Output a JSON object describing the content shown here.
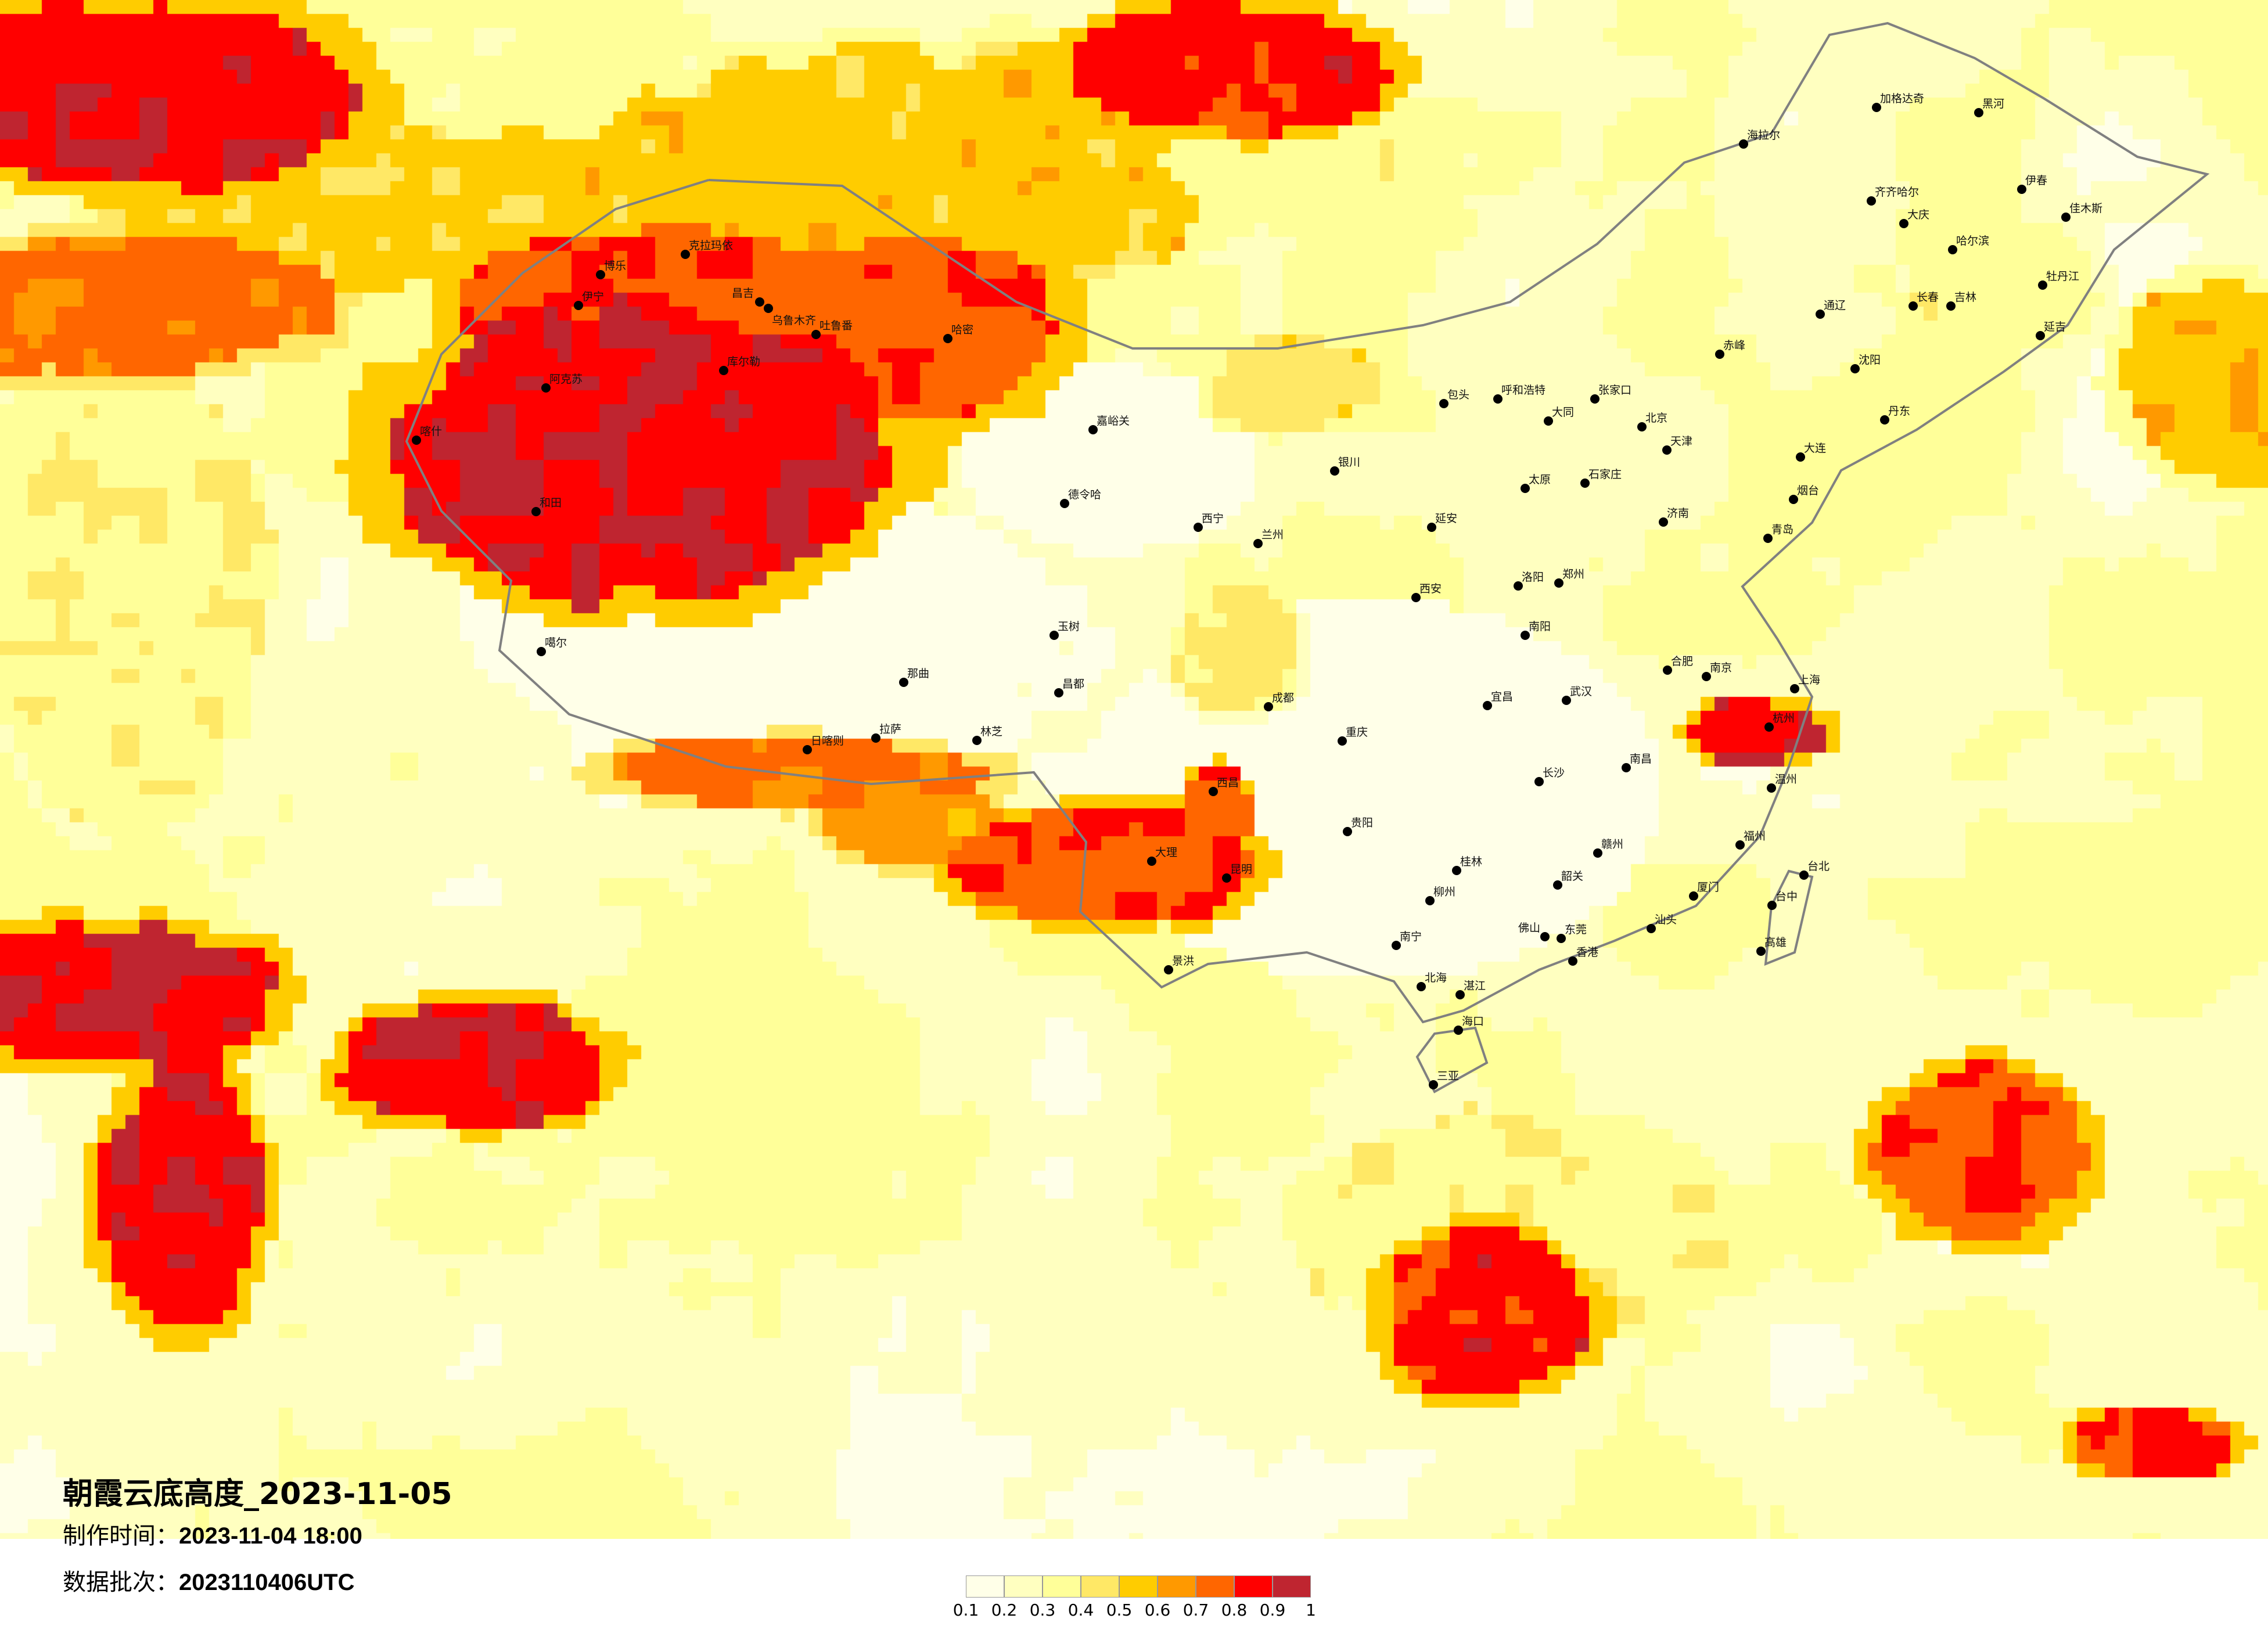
{
  "title": "朝霞云底高度_2023-11-05",
  "made_time": {
    "label": "制作时间：",
    "value": "2023-11-04 18:00"
  },
  "data_batch": {
    "label": "数据批次：",
    "value": "2023110406UTC"
  },
  "legend": {
    "ticks": [
      "0.1",
      "0.2",
      "0.3",
      "0.4",
      "0.5",
      "0.6",
      "0.7",
      "0.8",
      "0.9",
      "1"
    ],
    "colors": [
      "#FFFFE8",
      "#FFFFC0",
      "#FFFF99",
      "#FFE866",
      "#FFCC00",
      "#FF9900",
      "#FF6600",
      "#FF0000",
      "#BF2530"
    ]
  },
  "map_background": "#FFFFF0",
  "border_color": "#808080",
  "cities": [
    "北京",
    "天津",
    "石家庄",
    "太原",
    "呼和浩特",
    "包头",
    "银川",
    "兰州",
    "西宁",
    "西安",
    "郑州",
    "济南",
    "青岛",
    "南京",
    "上海",
    "杭州",
    "合肥",
    "武汉",
    "成都",
    "重庆",
    "长沙",
    "南昌",
    "贵阳",
    "福州",
    "烟台",
    "张家口",
    "大同",
    "延安",
    "洛阳",
    "南阳",
    "宜昌",
    "温州",
    "西昌",
    "嘉峪关",
    "德令哈",
    "玉树",
    "哈尔滨",
    "长春",
    "吉林",
    "沈阳",
    "大连",
    "齐齐哈尔",
    "黑河",
    "海拉尔",
    "加格达奇",
    "佳木斯",
    "牡丹江",
    "丹东",
    "赤峰",
    "通辽",
    "延吉",
    "伊春",
    "大庆",
    "昆明",
    "南宁",
    "佛山",
    "香港",
    "东莞",
    "海口",
    "三亚",
    "桂林",
    "柳州",
    "厦门",
    "台北",
    "台中",
    "高雄",
    "汕头",
    "大理",
    "景洪",
    "湛江",
    "北海",
    "韶关",
    "赣州",
    "乌鲁木齐",
    "伊宁",
    "克拉玛依",
    "博乐",
    "昌吉",
    "吐鲁番",
    "哈密",
    "库尔勒",
    "阿克苏",
    "喀什",
    "和田",
    "噶尔",
    "那曲",
    "拉萨",
    "日喀则",
    "林芝",
    "昌都"
  ]
}
